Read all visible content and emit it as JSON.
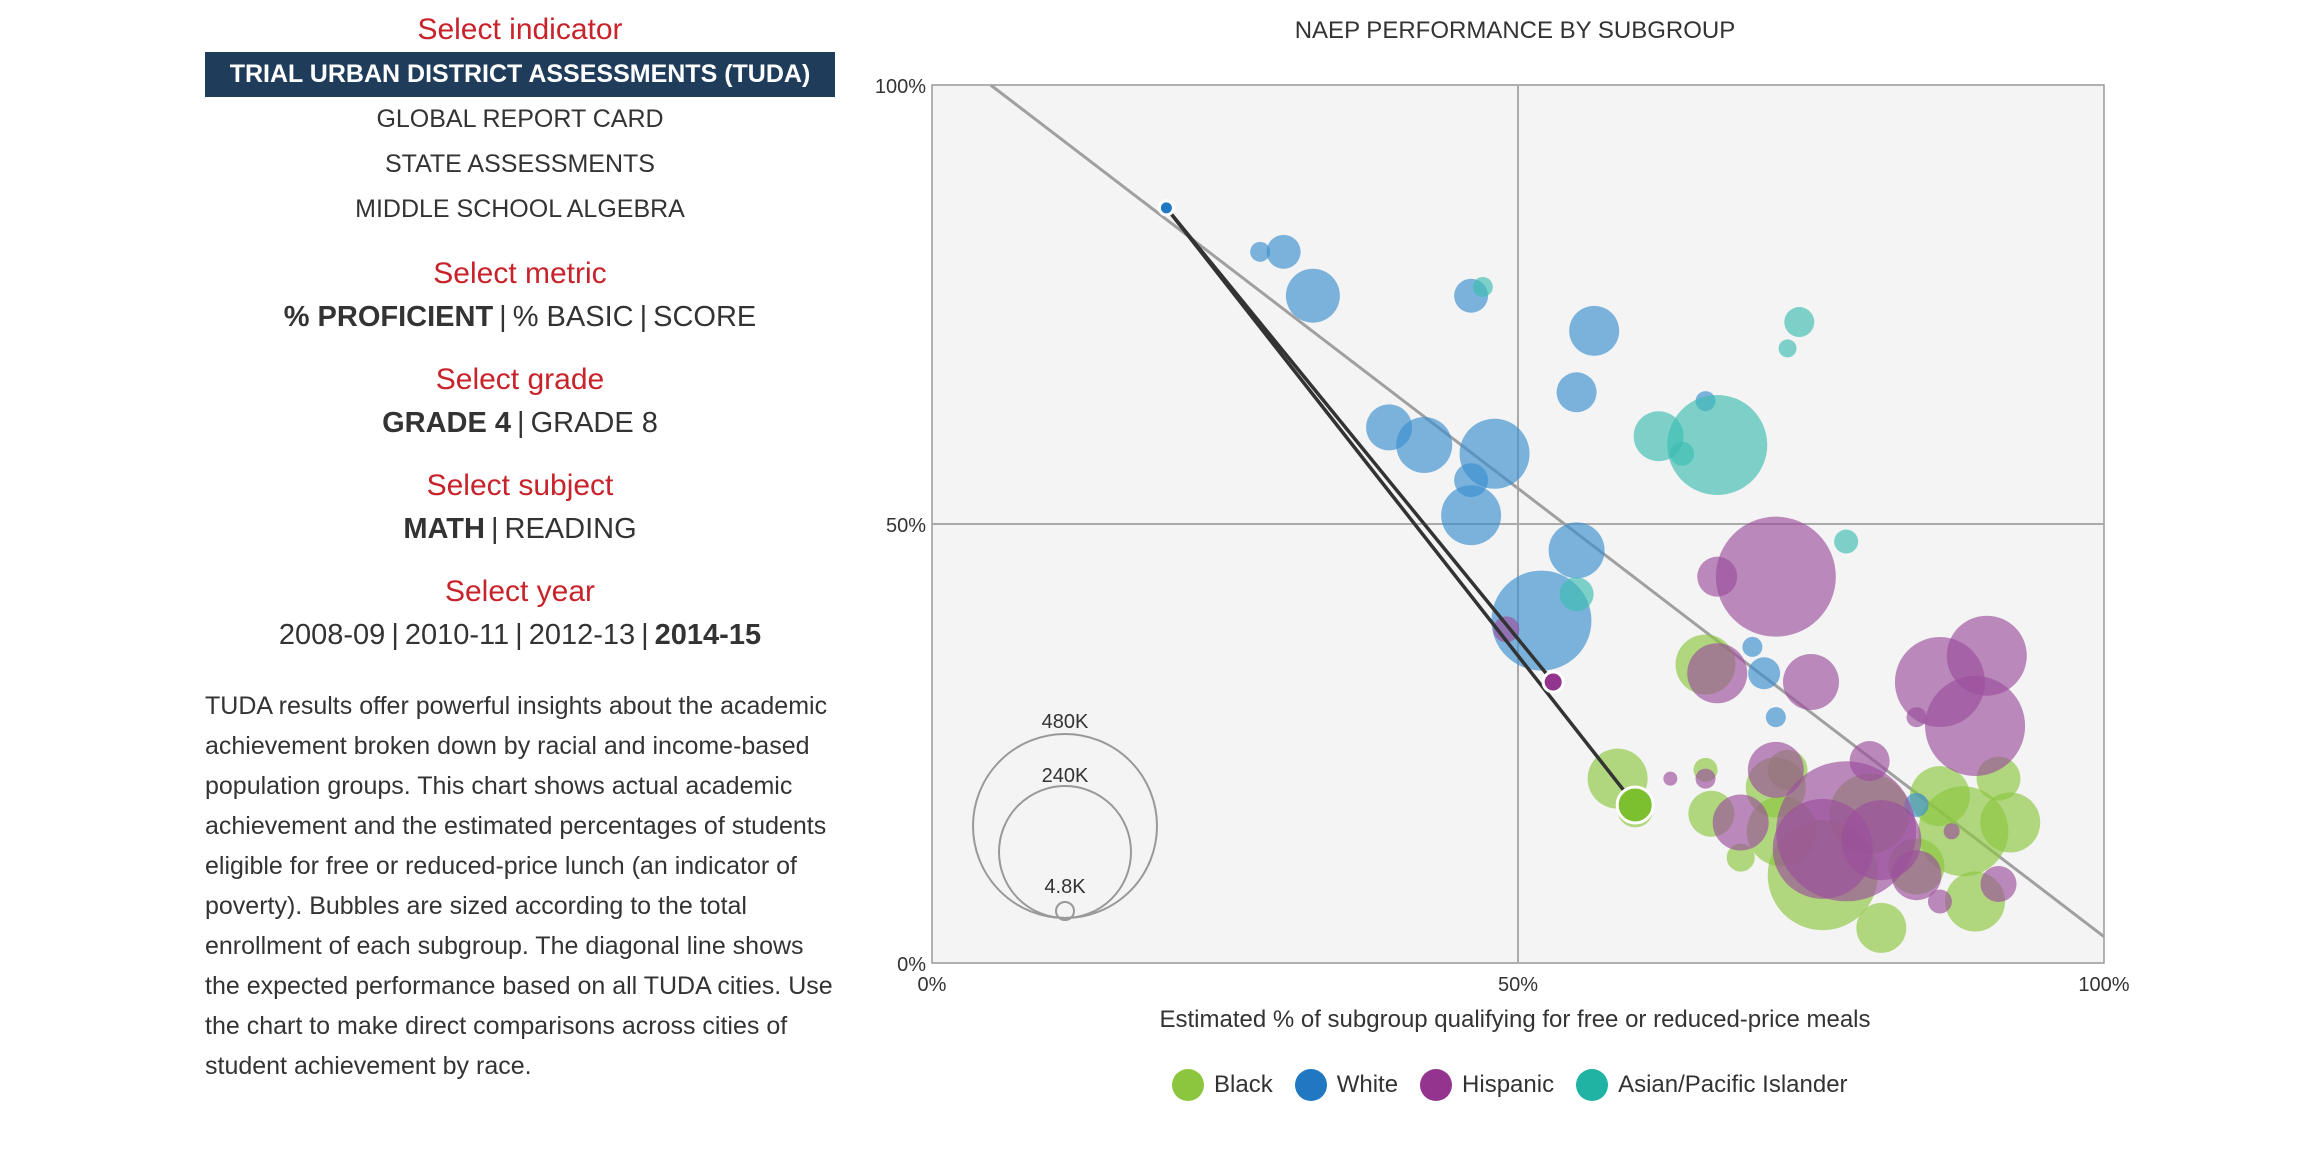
{
  "controls": {
    "indicator": {
      "heading": "Select indicator",
      "items": [
        "TRIAL URBAN DISTRICT ASSESSMENTS (TUDA)",
        "GLOBAL REPORT CARD",
        "STATE ASSESSMENTS",
        "MIDDLE SCHOOL ALGEBRA"
      ],
      "selected": 0
    },
    "metric": {
      "heading": "Select metric",
      "options": [
        "% PROFICIENT",
        "% BASIC",
        "SCORE"
      ],
      "selected": 0
    },
    "grade": {
      "heading": "Select grade",
      "options": [
        "GRADE 4",
        "GRADE 8"
      ],
      "selected": 0
    },
    "subject": {
      "heading": "Select subject",
      "options": [
        "MATH",
        "READING"
      ],
      "selected": 0
    },
    "year": {
      "heading": "Select year",
      "options": [
        "2008-09",
        "2010-11",
        "2012-13",
        "2014-15"
      ],
      "selected": 3
    }
  },
  "description": "TUDA results offer powerful insights about the academic achievement broken down by racial and income-based population groups. This chart shows actual academic achievement and the estimated percentages of students eligible for free or reduced-price lunch (an indicator of poverty). Bubbles are sized according to the total enrollment of each subgroup. The diagonal line shows the expected performance based on all TUDA cities. Use the chart to make direct comparisons across cities of student achievement by race.",
  "chart_data": {
    "type": "scatter",
    "title": "NAEP PERFORMANCE BY SUBGROUP",
    "xlabel": "Estimated % of subgroup qualifying for free or reduced-price meals",
    "ylabel": "",
    "xlim": [
      0,
      100
    ],
    "ylim": [
      0,
      100
    ],
    "x_ticks": [
      "0%",
      "50%",
      "100%"
    ],
    "y_ticks": [
      "0%",
      "50%",
      "100%"
    ],
    "grid": "crosshair at 50%",
    "legend_position": "bottom-center",
    "size_legend": [
      "480K",
      "240K",
      "4.8K"
    ],
    "expected_line": {
      "x": [
        5,
        100
      ],
      "y": [
        100,
        3
      ]
    },
    "highlight_lines": [
      {
        "x1": 20,
        "y1": 86,
        "x2": 53,
        "y2": 32
      },
      {
        "x1": 20,
        "y1": 86,
        "x2": 60,
        "y2": 18
      }
    ],
    "series": [
      {
        "name": "Black",
        "color": "#8cc63f",
        "points": [
          {
            "x": 58.5,
            "y": 21,
            "s": 30
          },
          {
            "x": 60,
            "y": 17.5,
            "s": 18
          },
          {
            "x": 66,
            "y": 34,
            "s": 30
          },
          {
            "x": 66.5,
            "y": 17,
            "s": 23
          },
          {
            "x": 69,
            "y": 12,
            "s": 14
          },
          {
            "x": 72,
            "y": 20,
            "s": 30
          },
          {
            "x": 72.5,
            "y": 15,
            "s": 35
          },
          {
            "x": 73,
            "y": 22,
            "s": 20
          },
          {
            "x": 76,
            "y": 10,
            "s": 55
          },
          {
            "x": 80,
            "y": 17,
            "s": 40
          },
          {
            "x": 81,
            "y": 4,
            "s": 25
          },
          {
            "x": 84,
            "y": 11,
            "s": 28
          },
          {
            "x": 86,
            "y": 19,
            "s": 30
          },
          {
            "x": 88,
            "y": 15,
            "s": 45
          },
          {
            "x": 89,
            "y": 7,
            "s": 30
          },
          {
            "x": 91,
            "y": 21,
            "s": 22
          },
          {
            "x": 92,
            "y": 16,
            "s": 30
          },
          {
            "x": 66,
            "y": 22,
            "s": 12
          }
        ]
      },
      {
        "name": "White",
        "color": "#3a8fd0",
        "points": [
          {
            "x": 20,
            "y": 86,
            "s": 7
          },
          {
            "x": 28,
            "y": 81,
            "s": 10
          },
          {
            "x": 30,
            "y": 81,
            "s": 17
          },
          {
            "x": 32.5,
            "y": 76,
            "s": 27
          },
          {
            "x": 39,
            "y": 61,
            "s": 23
          },
          {
            "x": 42,
            "y": 59,
            "s": 28
          },
          {
            "x": 46,
            "y": 76,
            "s": 17
          },
          {
            "x": 46,
            "y": 55,
            "s": 17
          },
          {
            "x": 46,
            "y": 51,
            "s": 30
          },
          {
            "x": 48,
            "y": 58,
            "s": 35
          },
          {
            "x": 52,
            "y": 39,
            "s": 50
          },
          {
            "x": 55,
            "y": 47,
            "s": 28
          },
          {
            "x": 55,
            "y": 65,
            "s": 20
          },
          {
            "x": 56.5,
            "y": 72,
            "s": 25
          },
          {
            "x": 66,
            "y": 64,
            "s": 10
          },
          {
            "x": 70,
            "y": 36,
            "s": 10
          },
          {
            "x": 71,
            "y": 33,
            "s": 16
          },
          {
            "x": 72,
            "y": 28,
            "s": 10
          },
          {
            "x": 84,
            "y": 18,
            "s": 12
          }
        ]
      },
      {
        "name": "Hispanic",
        "color": "#9b4f9b",
        "points": [
          {
            "x": 53,
            "y": 32,
            "s": 10
          },
          {
            "x": 49,
            "y": 38,
            "s": 13
          },
          {
            "x": 63,
            "y": 21,
            "s": 7
          },
          {
            "x": 66,
            "y": 21,
            "s": 10
          },
          {
            "x": 67,
            "y": 44,
            "s": 20
          },
          {
            "x": 67,
            "y": 33,
            "s": 30
          },
          {
            "x": 69,
            "y": 16,
            "s": 28
          },
          {
            "x": 72,
            "y": 44,
            "s": 60
          },
          {
            "x": 75,
            "y": 32,
            "s": 28
          },
          {
            "x": 72,
            "y": 22,
            "s": 28
          },
          {
            "x": 76,
            "y": 13,
            "s": 50
          },
          {
            "x": 78,
            "y": 15,
            "s": 70
          },
          {
            "x": 80,
            "y": 23,
            "s": 20
          },
          {
            "x": 81,
            "y": 14,
            "s": 40
          },
          {
            "x": 84,
            "y": 10,
            "s": 25
          },
          {
            "x": 86,
            "y": 7,
            "s": 12
          },
          {
            "x": 86,
            "y": 32,
            "s": 45
          },
          {
            "x": 90,
            "y": 35,
            "s": 40
          },
          {
            "x": 89,
            "y": 27,
            "s": 50
          },
          {
            "x": 91,
            "y": 9,
            "s": 18
          },
          {
            "x": 87,
            "y": 15,
            "s": 8
          },
          {
            "x": 84,
            "y": 28,
            "s": 10
          }
        ]
      },
      {
        "name": "Asian/Pacific Islander",
        "color": "#3dbdb0",
        "points": [
          {
            "x": 67,
            "y": 59,
            "s": 50
          },
          {
            "x": 62,
            "y": 60,
            "s": 25
          },
          {
            "x": 64,
            "y": 58,
            "s": 12
          },
          {
            "x": 74,
            "y": 73,
            "s": 15
          },
          {
            "x": 73,
            "y": 70,
            "s": 9
          },
          {
            "x": 55,
            "y": 42,
            "s": 17
          },
          {
            "x": 78,
            "y": 48,
            "s": 12
          },
          {
            "x": 47,
            "y": 77,
            "s": 10
          }
        ]
      }
    ]
  }
}
